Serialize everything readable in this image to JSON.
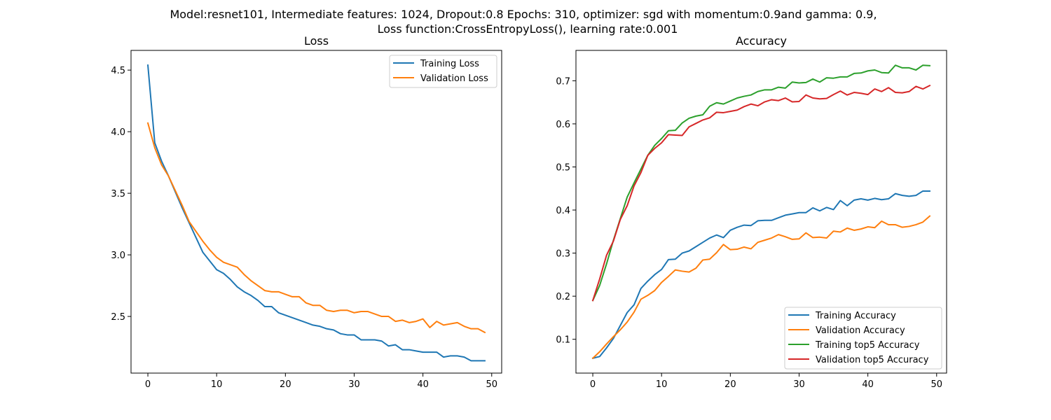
{
  "suptitle": {
    "line1": "Model:resnet101, Intermediate features: 1024, Dropout:0.8 Epochs: 310, optimizer: sgd with momentum:0.9and gamma: 0.9,",
    "line2": "Loss function:CrossEntropyLoss(), learning rate:0.001"
  },
  "colors": {
    "blue": "#1f77b4",
    "orange": "#ff7f0e",
    "green": "#2ca02c",
    "red": "#d62728"
  },
  "chart_data": [
    {
      "type": "line",
      "title": "Loss",
      "xlabel": "",
      "ylabel": "",
      "xlim": [
        -2.45,
        51.45
      ],
      "ylim": [
        2.04,
        4.66
      ],
      "xticks": [
        0,
        10,
        20,
        30,
        40,
        50
      ],
      "yticks": [
        2.5,
        3.0,
        3.5,
        4.0,
        4.5
      ],
      "xtick_labels": [
        "0",
        "10",
        "20",
        "30",
        "40",
        "50"
      ],
      "ytick_labels": [
        "2.5",
        "3.0",
        "3.5",
        "4.0",
        "4.5"
      ],
      "grid": false,
      "legend_position": "upper right",
      "x": [
        0,
        1,
        2,
        3,
        4,
        5,
        6,
        7,
        8,
        9,
        10,
        11,
        12,
        13,
        14,
        15,
        16,
        17,
        18,
        19,
        20,
        21,
        22,
        23,
        24,
        25,
        26,
        27,
        28,
        29,
        30,
        31,
        32,
        33,
        34,
        35,
        36,
        37,
        38,
        39,
        40,
        41,
        42,
        43,
        44,
        45,
        46,
        47,
        48,
        49
      ],
      "series": [
        {
          "name": "Training Loss",
          "color": "#1f77b4",
          "values": [
            4.54,
            3.91,
            3.76,
            3.64,
            3.51,
            3.38,
            3.26,
            3.14,
            3.02,
            2.95,
            2.88,
            2.85,
            2.8,
            2.74,
            2.7,
            2.67,
            2.63,
            2.58,
            2.58,
            2.53,
            2.51,
            2.49,
            2.47,
            2.45,
            2.43,
            2.42,
            2.4,
            2.39,
            2.36,
            2.35,
            2.35,
            2.31,
            2.31,
            2.31,
            2.3,
            2.26,
            2.27,
            2.23,
            2.23,
            2.22,
            2.21,
            2.21,
            2.21,
            2.17,
            2.18,
            2.18,
            2.17,
            2.14,
            2.14,
            2.14
          ]
        },
        {
          "name": "Validation Loss",
          "color": "#ff7f0e",
          "values": [
            4.07,
            3.87,
            3.73,
            3.64,
            3.52,
            3.4,
            3.27,
            3.19,
            3.11,
            3.04,
            2.98,
            2.94,
            2.92,
            2.9,
            2.84,
            2.79,
            2.75,
            2.71,
            2.7,
            2.7,
            2.68,
            2.66,
            2.66,
            2.61,
            2.59,
            2.59,
            2.55,
            2.54,
            2.55,
            2.55,
            2.53,
            2.54,
            2.54,
            2.52,
            2.5,
            2.5,
            2.46,
            2.47,
            2.45,
            2.46,
            2.48,
            2.41,
            2.46,
            2.43,
            2.44,
            2.45,
            2.42,
            2.4,
            2.4,
            2.37
          ]
        }
      ]
    },
    {
      "type": "line",
      "title": "Accuracy",
      "xlabel": "",
      "ylabel": "",
      "xlim": [
        -2.45,
        51.45
      ],
      "ylim": [
        0.0215,
        0.7705
      ],
      "xticks": [
        0,
        10,
        20,
        30,
        40,
        50
      ],
      "yticks": [
        0.1,
        0.2,
        0.3,
        0.4,
        0.5,
        0.6,
        0.7
      ],
      "xtick_labels": [
        "0",
        "10",
        "20",
        "30",
        "40",
        "50"
      ],
      "ytick_labels": [
        "0.1",
        "0.2",
        "0.3",
        "0.4",
        "0.5",
        "0.6",
        "0.7"
      ],
      "grid": false,
      "legend_position": "lower right",
      "x": [
        0,
        1,
        2,
        3,
        4,
        5,
        6,
        7,
        8,
        9,
        10,
        11,
        12,
        13,
        14,
        15,
        16,
        17,
        18,
        19,
        20,
        21,
        22,
        23,
        24,
        25,
        26,
        27,
        28,
        29,
        30,
        31,
        32,
        33,
        34,
        35,
        36,
        37,
        38,
        39,
        40,
        41,
        42,
        43,
        44,
        45,
        46,
        47,
        48,
        49
      ],
      "series": [
        {
          "name": "Training Accuracy",
          "color": "#1f77b4",
          "values": [
            0.056,
            0.06,
            0.08,
            0.102,
            0.132,
            0.162,
            0.18,
            0.218,
            0.235,
            0.25,
            0.262,
            0.285,
            0.286,
            0.3,
            0.305,
            0.315,
            0.325,
            0.335,
            0.342,
            0.336,
            0.353,
            0.36,
            0.365,
            0.364,
            0.375,
            0.376,
            0.376,
            0.382,
            0.388,
            0.391,
            0.394,
            0.394,
            0.405,
            0.398,
            0.406,
            0.401,
            0.422,
            0.41,
            0.423,
            0.426,
            0.423,
            0.427,
            0.424,
            0.426,
            0.438,
            0.434,
            0.432,
            0.434,
            0.444,
            0.444
          ]
        },
        {
          "name": "Validation Accuracy",
          "color": "#ff7f0e",
          "values": [
            0.056,
            0.071,
            0.089,
            0.106,
            0.122,
            0.14,
            0.163,
            0.193,
            0.202,
            0.213,
            0.232,
            0.246,
            0.261,
            0.258,
            0.256,
            0.265,
            0.284,
            0.286,
            0.301,
            0.32,
            0.308,
            0.309,
            0.314,
            0.31,
            0.325,
            0.33,
            0.335,
            0.343,
            0.338,
            0.332,
            0.333,
            0.347,
            0.336,
            0.337,
            0.335,
            0.351,
            0.349,
            0.358,
            0.353,
            0.356,
            0.361,
            0.359,
            0.374,
            0.366,
            0.366,
            0.36,
            0.362,
            0.366,
            0.372,
            0.386
          ]
        },
        {
          "name": "Training top5 Accuracy",
          "color": "#2ca02c",
          "values": [
            0.19,
            0.225,
            0.275,
            0.33,
            0.38,
            0.43,
            0.463,
            0.495,
            0.527,
            0.55,
            0.566,
            0.584,
            0.585,
            0.602,
            0.613,
            0.618,
            0.621,
            0.641,
            0.649,
            0.646,
            0.653,
            0.66,
            0.664,
            0.667,
            0.675,
            0.679,
            0.679,
            0.685,
            0.683,
            0.697,
            0.695,
            0.696,
            0.704,
            0.697,
            0.707,
            0.706,
            0.709,
            0.709,
            0.717,
            0.718,
            0.723,
            0.725,
            0.719,
            0.718,
            0.736,
            0.73,
            0.73,
            0.725,
            0.736,
            0.735
          ]
        },
        {
          "name": "Validation top5 Accuracy",
          "color": "#d62728",
          "values": [
            0.19,
            0.24,
            0.295,
            0.328,
            0.378,
            0.41,
            0.456,
            0.487,
            0.527,
            0.543,
            0.556,
            0.575,
            0.574,
            0.573,
            0.593,
            0.601,
            0.609,
            0.614,
            0.627,
            0.626,
            0.629,
            0.632,
            0.64,
            0.646,
            0.642,
            0.651,
            0.656,
            0.654,
            0.66,
            0.651,
            0.652,
            0.667,
            0.66,
            0.658,
            0.659,
            0.668,
            0.676,
            0.667,
            0.673,
            0.671,
            0.668,
            0.681,
            0.675,
            0.684,
            0.673,
            0.672,
            0.675,
            0.687,
            0.681,
            0.689
          ]
        }
      ]
    }
  ]
}
